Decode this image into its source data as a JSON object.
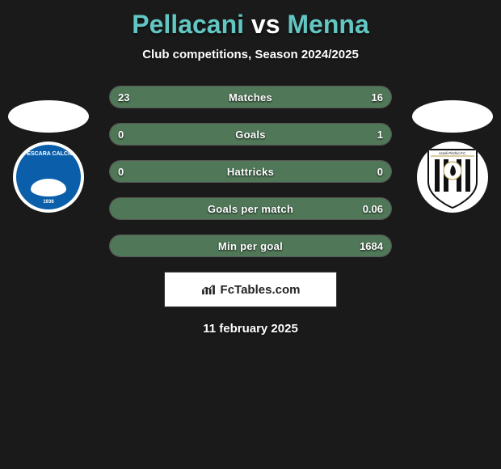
{
  "title": {
    "player1": "Pellacani",
    "vs": "vs",
    "player2": "Menna",
    "color_p1": "#62c6c2",
    "color_vs": "#ffffff",
    "color_p2": "#62c6c2"
  },
  "subtitle": "Club competitions, Season 2024/2025",
  "accent_color": "#507858",
  "bar_bg": "#2a2a2a",
  "bar_border": "#585858",
  "rows": [
    {
      "label": "Matches",
      "left_val": "23",
      "right_val": "16",
      "left_pct": 59,
      "right_pct": 41
    },
    {
      "label": "Goals",
      "left_val": "0",
      "right_val": "1",
      "left_pct": 17,
      "right_pct": 83
    },
    {
      "label": "Hattricks",
      "left_val": "0",
      "right_val": "0",
      "left_pct": 50,
      "right_pct": 50
    },
    {
      "label": "Goals per match",
      "left_val": "",
      "right_val": "0.06",
      "left_pct": 30,
      "right_pct": 70
    },
    {
      "label": "Min per goal",
      "left_val": "",
      "right_val": "1684",
      "left_pct": 50,
      "right_pct": 50
    }
  ],
  "clubs": {
    "left": {
      "name": "Pescara",
      "crest_text": "PESCARA CALCIO",
      "year": "1936",
      "badge_bg": "#0b5faa"
    },
    "right": {
      "name": "Ascoli",
      "crest_text": "Ascoli Picchio F.C."
    }
  },
  "brand": {
    "text": "FcTables.com"
  },
  "date": "11 february 2025"
}
